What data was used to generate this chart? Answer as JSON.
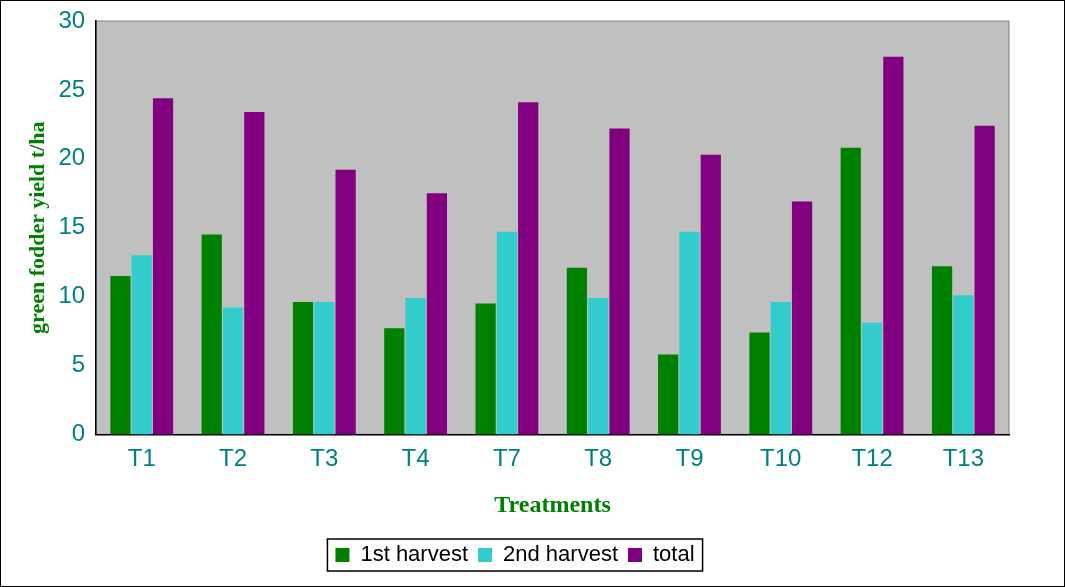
{
  "chart_data": {
    "type": "bar",
    "xlabel": "Treatments",
    "ylabel": "green fodder yield t/ha",
    "categories": [
      "T1",
      "T2",
      "T3",
      "T4",
      "T7",
      "T8",
      "T9",
      "T10",
      "T12",
      "T13"
    ],
    "series": [
      {
        "name": "1st harvest",
        "color": "#008000",
        "values": [
          11.5,
          14.5,
          9.6,
          7.7,
          9.5,
          12.1,
          5.8,
          7.4,
          20.8,
          12.2
        ]
      },
      {
        "name": "2nd harvest",
        "color": "#33cccc",
        "values": [
          13.0,
          9.2,
          9.6,
          9.9,
          14.7,
          9.9,
          14.7,
          9.6,
          8.1,
          10.1
        ]
      },
      {
        "name": "total",
        "color": "#800080",
        "values": [
          24.4,
          23.4,
          19.2,
          17.5,
          24.1,
          22.2,
          20.3,
          16.9,
          27.4,
          22.4
        ]
      }
    ],
    "ylim": [
      0,
      30
    ],
    "yticks": [
      0,
      5,
      10,
      15,
      20,
      25,
      30
    ],
    "grid": false,
    "legend": "bottom"
  }
}
